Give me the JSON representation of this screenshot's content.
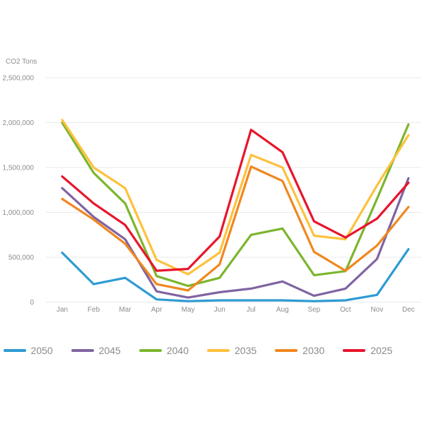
{
  "chart_data": {
    "type": "line",
    "title": "",
    "ylabel": "CO2 Tons",
    "xlabel": "",
    "categories": [
      "Jan",
      "Feb",
      "Mar",
      "Apr",
      "May",
      "Jun",
      "Jul",
      "Aug",
      "Sep",
      "Oct",
      "Nov",
      "Dec"
    ],
    "y_ticks": [
      "0",
      "500,000",
      "1,000,000",
      "1,500,000",
      "2,000,000",
      "2,500,000"
    ],
    "ylim": [
      0,
      2500000
    ],
    "y_tick_step": 500000,
    "grid": "horizontal",
    "legend_position": "bottom",
    "text_color": "#8c8c8c",
    "grid_color": "#e9e9e9",
    "series": [
      {
        "name": "2050",
        "color": "#2d9bd3",
        "values": [
          550000,
          200000,
          270000,
          30000,
          10000,
          20000,
          20000,
          20000,
          10000,
          20000,
          80000,
          590000
        ]
      },
      {
        "name": "2045",
        "color": "#8064a2",
        "values": [
          1270000,
          950000,
          700000,
          120000,
          50000,
          110000,
          150000,
          230000,
          70000,
          150000,
          480000,
          1380000
        ]
      },
      {
        "name": "2040",
        "color": "#7cb52d",
        "values": [
          2000000,
          1440000,
          1100000,
          290000,
          180000,
          270000,
          750000,
          820000,
          300000,
          345000,
          1150000,
          1980000
        ]
      },
      {
        "name": "2035",
        "color": "#fec13c",
        "values": [
          2030000,
          1500000,
          1270000,
          470000,
          310000,
          550000,
          1640000,
          1500000,
          740000,
          700000,
          1300000,
          1860000
        ]
      },
      {
        "name": "2030",
        "color": "#f0871f",
        "values": [
          1150000,
          920000,
          650000,
          200000,
          130000,
          420000,
          1510000,
          1350000,
          560000,
          350000,
          630000,
          1060000
        ]
      },
      {
        "name": "2025",
        "color": "#e8152c",
        "values": [
          1400000,
          1100000,
          860000,
          350000,
          370000,
          730000,
          1920000,
          1670000,
          900000,
          720000,
          930000,
          1330000
        ]
      }
    ]
  },
  "footnote": "···"
}
